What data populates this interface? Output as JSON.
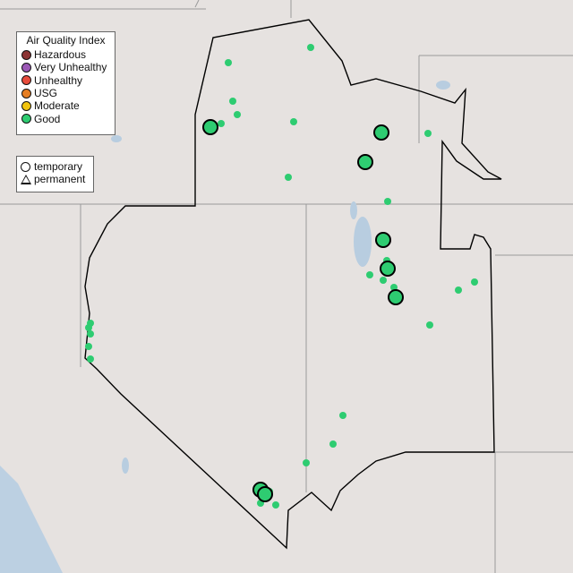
{
  "legend_aqi": {
    "title": "Air Quality Index",
    "items": [
      {
        "label": "Hazardous",
        "color": "#8c3535"
      },
      {
        "label": "Very Unhealthy",
        "color": "#9b59b6"
      },
      {
        "label": "Unhealthy",
        "color": "#e74c3c"
      },
      {
        "label": "USG",
        "color": "#e67e22"
      },
      {
        "label": "Moderate",
        "color": "#f1c40f"
      },
      {
        "label": "Good",
        "color": "#2ecc71"
      }
    ]
  },
  "legend_type": {
    "items": [
      {
        "label": "temporary",
        "icon": "circle-icon"
      },
      {
        "label": "permanent",
        "icon": "triangle-icon"
      }
    ]
  },
  "map": {
    "background_color": "#e6e2e0",
    "water_color": "#b8cde0",
    "region_outline_color": "#000000",
    "marker_color": "#2ecc71",
    "marker_category": "Good"
  }
}
